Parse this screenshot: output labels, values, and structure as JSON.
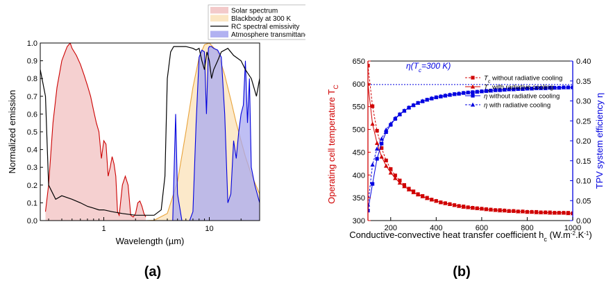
{
  "chart_data": [
    {
      "type": "area",
      "panel_label": "(a)",
      "xlabel": "Wavelength (µm)",
      "ylabel": "Normalized emission",
      "xscale": "log",
      "xlim": [
        0.25,
        30
      ],
      "ylim": [
        0,
        1.0
      ],
      "x_ticks": [
        "1",
        "10"
      ],
      "y_ticks": [
        "0.0",
        "0.1",
        "0.2",
        "0.3",
        "0.4",
        "0.5",
        "0.6",
        "0.7",
        "0.8",
        "0.9",
        "1.0"
      ],
      "legend_placement": "top-right",
      "colors": {
        "solar_line": "#cc0000",
        "solar_fill": "#f2c4c4",
        "blackbody_line": "#e8a33a",
        "blackbody_fill": "#fbe3bd",
        "rc": "#000000",
        "atm_line": "#0000dd",
        "atm_fill": "#a9a9f0"
      },
      "series": [
        {
          "name": "Solar spectrum",
          "x": [
            0.28,
            0.3,
            0.33,
            0.36,
            0.4,
            0.43,
            0.45,
            0.48,
            0.5,
            0.55,
            0.6,
            0.65,
            0.7,
            0.75,
            0.8,
            0.85,
            0.9,
            0.95,
            1.0,
            1.05,
            1.1,
            1.15,
            1.2,
            1.25,
            1.3,
            1.35,
            1.4,
            1.5,
            1.6,
            1.7,
            1.8,
            1.9,
            2.0,
            2.1,
            2.2,
            2.3,
            2.4,
            2.5
          ],
          "y": [
            0.05,
            0.2,
            0.55,
            0.75,
            0.9,
            0.95,
            0.98,
            1.0,
            0.97,
            0.93,
            0.88,
            0.82,
            0.76,
            0.7,
            0.62,
            0.55,
            0.5,
            0.35,
            0.45,
            0.43,
            0.25,
            0.3,
            0.36,
            0.32,
            0.25,
            0.05,
            0.03,
            0.2,
            0.25,
            0.2,
            0.03,
            0.02,
            0.04,
            0.1,
            0.11,
            0.08,
            0.04,
            0.02
          ]
        },
        {
          "name": "Blackbody at 300 K",
          "x": [
            2.5,
            3,
            4,
            5,
            6,
            7,
            8,
            9,
            10,
            12,
            14,
            16,
            18,
            20,
            22,
            25,
            30
          ],
          "y": [
            0.0,
            0.002,
            0.04,
            0.22,
            0.5,
            0.75,
            0.92,
            0.99,
            1.0,
            0.95,
            0.82,
            0.68,
            0.55,
            0.45,
            0.36,
            0.26,
            0.15
          ]
        },
        {
          "name": "RC spectral emissivity",
          "x": [
            0.25,
            0.28,
            0.3,
            0.35,
            0.4,
            0.5,
            0.6,
            0.7,
            0.8,
            0.9,
            1.0,
            1.2,
            1.5,
            2.0,
            2.5,
            3.0,
            3.5,
            3.8,
            4.0,
            4.3,
            4.6,
            5.0,
            6.0,
            7.0,
            7.5,
            8.0,
            8.5,
            9.0,
            9.5,
            10.0,
            10.5,
            11,
            12,
            13,
            15,
            17,
            20,
            22,
            25,
            28,
            30
          ],
          "y": [
            0.85,
            0.7,
            0.2,
            0.12,
            0.14,
            0.12,
            0.1,
            0.08,
            0.07,
            0.06,
            0.06,
            0.05,
            0.04,
            0.03,
            0.03,
            0.03,
            0.06,
            0.25,
            0.8,
            0.95,
            0.98,
            0.98,
            0.98,
            0.97,
            0.96,
            0.97,
            0.9,
            0.85,
            0.95,
            0.9,
            0.8,
            0.85,
            0.9,
            0.95,
            0.97,
            0.93,
            0.9,
            0.85,
            0.8,
            0.7,
            0.8
          ]
        },
        {
          "name": "Atmosphere transmittance",
          "x": [
            4.5,
            4.8,
            5.0,
            5.5,
            6.0,
            6.5,
            7.0,
            7.5,
            8.0,
            8.5,
            9.0,
            9.4,
            9.8,
            10.0,
            10.5,
            11,
            12,
            13,
            14,
            15,
            16,
            17,
            18,
            19,
            20,
            21,
            22,
            23,
            24,
            25,
            27,
            30
          ],
          "y": [
            0.0,
            0.6,
            0.15,
            0.0,
            0.0,
            0.0,
            0.05,
            0.55,
            0.92,
            0.96,
            0.95,
            0.6,
            0.97,
            0.98,
            0.98,
            0.97,
            0.96,
            0.92,
            0.6,
            0.1,
            0.15,
            0.45,
            0.35,
            0.5,
            0.6,
            0.65,
            0.9,
            0.55,
            0.8,
            0.3,
            0.2,
            0.1
          ]
        }
      ]
    },
    {
      "type": "scatter",
      "panel_label": "(b)",
      "xlabel": "Conductive-convective heat transfer coefficient h",
      "xlabel_sub": "c",
      "xlabel_units": " (W.m",
      "xlabel_sup1": "-2",
      "xlabel_mid": ".K",
      "xlabel_sup2": "-1",
      "xlabel_end": ")",
      "ylabel_left": "Operating cell temperature T",
      "ylabel_left_sub": "C",
      "ylabel_right": "TPV system efficiency η",
      "xlim": [
        100,
        1000
      ],
      "ylim_left": [
        300,
        650
      ],
      "ylim_right": [
        0,
        0.4
      ],
      "x_ticks": [
        "200",
        "400",
        "600",
        "800",
        "1000"
      ],
      "y_left_ticks": [
        "300",
        "350",
        "400",
        "450",
        "500",
        "550",
        "600",
        "650"
      ],
      "y_right_ticks": [
        "0.00",
        "0.05",
        "0.10",
        "0.15",
        "0.20",
        "0.25",
        "0.30",
        "0.35",
        "0.40"
      ],
      "annotation": {
        "pre": "η(T",
        "sub": "c",
        "post": "=300 K)",
        "y_right_value": 0.341
      },
      "legend_placement": "top-right",
      "colors": {
        "temperature": "#d00000",
        "efficiency": "#0000e0"
      },
      "series": [
        {
          "name": "T",
          "name_sub": "c",
          "name_rest": " without radiative cooling",
          "axis": "left",
          "marker": "square",
          "line": "dashed",
          "x": [
            100,
            120,
            140,
            160,
            180,
            200,
            220,
            240,
            260,
            280,
            300,
            320,
            340,
            360,
            380,
            400,
            420,
            440,
            460,
            480,
            500,
            520,
            540,
            560,
            580,
            600,
            620,
            640,
            660,
            680,
            700,
            720,
            740,
            760,
            780,
            800,
            820,
            840,
            860,
            880,
            900,
            920,
            940,
            960,
            980,
            1000
          ],
          "y": [
            640,
            551,
            497,
            459,
            432,
            413,
            399,
            388,
            378,
            370,
            364,
            358,
            354,
            350,
            346,
            343,
            340,
            338,
            336,
            334,
            332,
            331,
            329,
            328,
            327,
            326,
            325,
            324,
            323,
            323,
            322,
            321,
            321,
            320,
            320,
            319,
            319,
            319,
            318,
            318,
            318,
            317,
            317,
            317,
            317,
            316
          ]
        },
        {
          "name": "T",
          "name_sub": "c",
          "name_rest": " with radiative cooling",
          "axis": "left",
          "marker": "triangle",
          "line": "solid",
          "x": [
            100,
            120,
            140,
            160,
            180,
            200,
            220,
            240,
            260,
            280,
            300,
            320,
            340,
            360,
            380,
            400,
            420,
            440,
            460,
            480,
            500,
            520,
            540,
            560,
            580,
            600,
            620,
            640,
            660,
            680,
            700,
            720,
            740,
            760,
            780,
            800,
            820,
            840,
            860,
            880,
            900,
            920,
            940,
            960,
            980,
            1000
          ],
          "y": [
            600,
            512,
            470,
            440,
            420,
            405,
            393,
            383,
            375,
            368,
            362,
            357,
            353,
            349,
            346,
            343,
            340,
            338,
            336,
            334,
            332,
            330,
            329,
            328,
            327,
            326,
            325,
            324,
            323,
            322,
            322,
            321,
            321,
            320,
            320,
            319,
            319,
            318,
            318,
            318,
            317,
            317,
            317,
            317,
            316,
            316
          ]
        },
        {
          "name": "η",
          "name_rest": " without radiative cooling",
          "axis": "right",
          "marker": "square",
          "line": "solid",
          "x": [
            100,
            120,
            140,
            160,
            180,
            200,
            220,
            240,
            260,
            280,
            300,
            320,
            340,
            360,
            380,
            400,
            420,
            440,
            460,
            480,
            500,
            520,
            540,
            560,
            580,
            600,
            620,
            640,
            660,
            680,
            700,
            720,
            740,
            760,
            780,
            800,
            820,
            840,
            860,
            880,
            900,
            920,
            940,
            960,
            980,
            1000
          ],
          "y": [
            0.025,
            0.092,
            0.155,
            0.193,
            0.222,
            0.24,
            0.255,
            0.266,
            0.275,
            0.283,
            0.289,
            0.295,
            0.299,
            0.303,
            0.306,
            0.309,
            0.311,
            0.313,
            0.315,
            0.317,
            0.318,
            0.32,
            0.321,
            0.322,
            0.323,
            0.324,
            0.325,
            0.326,
            0.327,
            0.327,
            0.328,
            0.329,
            0.329,
            0.33,
            0.33,
            0.331,
            0.331,
            0.332,
            0.332,
            0.332,
            0.333,
            0.333,
            0.333,
            0.334,
            0.334,
            0.334
          ]
        },
        {
          "name": "η",
          "name_rest": " with radiative cooling",
          "axis": "right",
          "marker": "triangle",
          "line": "dashed",
          "x": [
            100,
            120,
            140,
            160,
            180,
            200,
            220,
            240,
            260,
            280,
            300,
            320,
            340,
            360,
            380,
            400,
            420,
            440,
            460,
            480,
            500,
            520,
            540,
            560,
            580,
            600,
            620,
            640,
            660,
            680,
            700,
            720,
            740,
            760,
            780,
            800,
            820,
            840,
            860,
            880,
            900,
            920,
            940,
            960,
            980,
            1000
          ],
          "y": [
            0.04,
            0.14,
            0.18,
            0.205,
            0.228,
            0.243,
            0.257,
            0.267,
            0.276,
            0.284,
            0.29,
            0.295,
            0.3,
            0.303,
            0.307,
            0.309,
            0.312,
            0.314,
            0.316,
            0.317,
            0.319,
            0.32,
            0.321,
            0.322,
            0.323,
            0.324,
            0.325,
            0.326,
            0.327,
            0.328,
            0.328,
            0.329,
            0.329,
            0.33,
            0.33,
            0.331,
            0.331,
            0.332,
            0.332,
            0.332,
            0.333,
            0.333,
            0.333,
            0.334,
            0.334,
            0.335
          ]
        }
      ]
    }
  ]
}
